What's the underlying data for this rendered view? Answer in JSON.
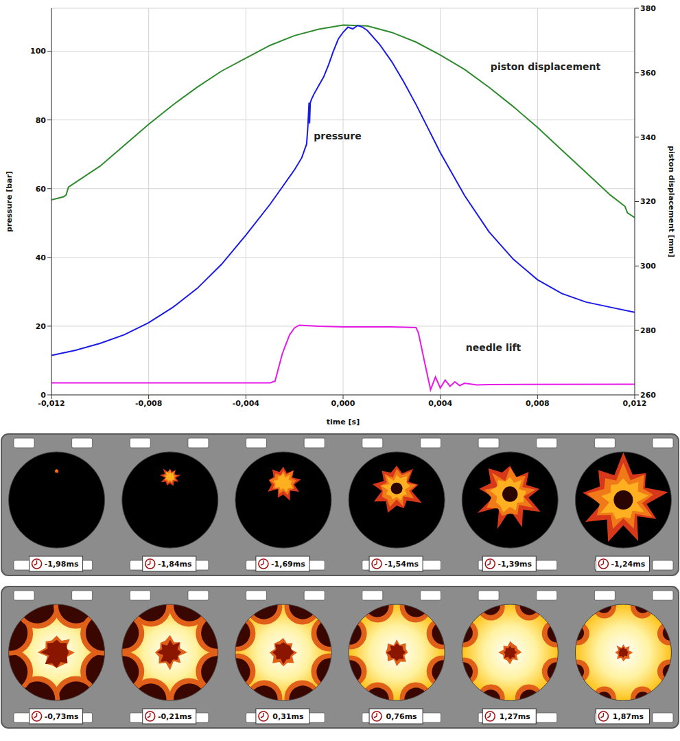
{
  "chart_data": {
    "type": "line",
    "xlabel": "time [s]",
    "ylabel": "pressure [bar]",
    "y2label": "piston displacement [mm]",
    "xlim": [
      -0.012,
      0.012
    ],
    "xticks": [
      {
        "value": -0.012,
        "label": "-0,012"
      },
      {
        "value": -0.008,
        "label": "-0,008"
      },
      {
        "value": -0.004,
        "label": "-0,004"
      },
      {
        "value": 0,
        "label": "0,000"
      },
      {
        "value": 0.004,
        "label": "0,004"
      },
      {
        "value": 0.008,
        "label": "0,008"
      },
      {
        "value": 0.012,
        "label": "0,012"
      }
    ],
    "ylim": [
      0,
      112.5
    ],
    "yticks": [
      0,
      20,
      40,
      60,
      80,
      100
    ],
    "y2lim": [
      260,
      380
    ],
    "y2ticks": [
      260,
      280,
      300,
      320,
      340,
      360,
      380
    ],
    "grid": true,
    "series": [
      {
        "name": "piston displacement",
        "color": "#2e8b2e",
        "axis": "y2",
        "x": [
          -0.012,
          -0.0115,
          -0.0114,
          -0.0113,
          -0.011,
          -0.01,
          -0.009,
          -0.008,
          -0.007,
          -0.006,
          -0.005,
          -0.004,
          -0.003,
          -0.002,
          -0.001,
          0,
          0.001,
          0.002,
          0.003,
          0.004,
          0.005,
          0.006,
          0.007,
          0.008,
          0.009,
          0.01,
          0.011,
          0.0116,
          0.0117,
          0.012
        ],
        "values": [
          320.5,
          321.5,
          322,
          324.5,
          326,
          331,
          337.5,
          344,
          350,
          355.5,
          360.5,
          364.5,
          368.5,
          371.5,
          373.5,
          374.8,
          374.5,
          372.5,
          369.5,
          365.5,
          361,
          355.5,
          349.5,
          343,
          336,
          329,
          322,
          318.5,
          316.5,
          315
        ]
      },
      {
        "name": "pressure",
        "color": "#1a1ae6",
        "x": [
          -0.012,
          -0.011,
          -0.01,
          -0.009,
          -0.008,
          -0.007,
          -0.006,
          -0.005,
          -0.004,
          -0.003,
          -0.0025,
          -0.002,
          -0.0017,
          -0.0016,
          -0.0015,
          -0.00145,
          -0.0014,
          -0.00138,
          -0.00135,
          -0.0013,
          -0.0012,
          -0.001,
          -0.0008,
          -0.0006,
          -0.0004,
          -0.0002,
          0,
          0.0002,
          0.0004,
          0.0006,
          0.0008,
          0.001,
          0.0015,
          0.002,
          0.0025,
          0.003,
          0.0035,
          0.004,
          0.005,
          0.006,
          0.007,
          0.008,
          0.009,
          0.01,
          0.011,
          0.012
        ],
        "values": [
          11.5,
          13,
          15,
          17.5,
          21,
          25.5,
          31,
          38,
          46.5,
          55.5,
          60.5,
          65.5,
          69,
          71,
          73,
          78,
          85,
          79,
          85,
          86,
          87.5,
          90,
          92.5,
          96,
          100,
          103.5,
          105.5,
          107,
          106.5,
          107.5,
          107,
          106,
          102,
          97,
          91,
          84.5,
          77.5,
          70.5,
          58,
          47.5,
          39.5,
          33.5,
          29.5,
          27,
          25.5,
          24
        ]
      },
      {
        "name": "needle lift",
        "color": "#e619e6",
        "x": [
          -0.012,
          -0.003,
          -0.0028,
          -0.0025,
          -0.0022,
          -0.002,
          -0.0018,
          -0.001,
          0,
          0.002,
          0.003,
          0.0031,
          0.0034,
          0.0036,
          0.0038,
          0.004,
          0.0042,
          0.0044,
          0.0046,
          0.0048,
          0.005,
          0.0055,
          0.006,
          0.012
        ],
        "values": [
          3.5,
          3.5,
          4,
          12,
          17.5,
          19.5,
          20.3,
          20,
          19.8,
          19.8,
          19.6,
          18,
          8,
          1.5,
          5.2,
          2,
          4.3,
          2.5,
          3.8,
          2.7,
          3.4,
          2.9,
          3,
          3.1
        ]
      }
    ]
  },
  "film_strips": [
    {
      "frames": [
        "-1,98ms",
        "-1,84ms",
        "-1,69ms",
        "-1,54ms",
        "-1,39ms",
        "-1,24ms"
      ]
    },
    {
      "frames": [
        "-0,73ms",
        "-0,21ms",
        "0,31ms",
        "0,76ms",
        "1,27ms",
        "1,87ms"
      ]
    }
  ]
}
